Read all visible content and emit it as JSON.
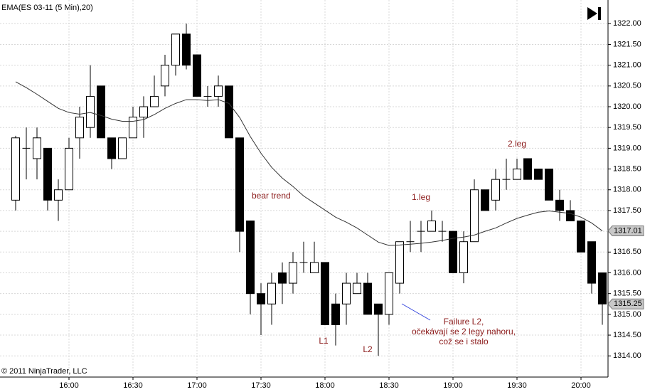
{
  "chart_data": {
    "type": "candlestick",
    "title": "EMA(ES 03-11 (5 Min),20)",
    "footer": "© 2011 NinjaTrader, LLC",
    "categories": [
      null,
      null,
      null,
      null,
      null,
      "16:00",
      null,
      null,
      null,
      null,
      null,
      "16:30",
      null,
      null,
      null,
      null,
      null,
      "17:00",
      null,
      null,
      null,
      null,
      null,
      "17:30",
      null,
      null,
      null,
      null,
      null,
      "18:00",
      null,
      null,
      null,
      null,
      null,
      "18:30",
      null,
      null,
      null,
      null,
      null,
      "19:00",
      null,
      null,
      null,
      null,
      null,
      "19:30",
      null,
      null,
      null,
      null,
      null,
      "20:00",
      null,
      null
    ],
    "open": [
      1317.75,
      1319.0,
      1318.75,
      1319.0,
      1317.75,
      1318.0,
      1319.25,
      1319.5,
      1320.5,
      1319.25,
      1318.75,
      1319.25,
      1319.75,
      1320.0,
      1320.5,
      1321.0,
      1321.75,
      1321.25,
      1320.25,
      1320.25,
      1320.5,
      1319.25,
      1317.25,
      1315.5,
      1315.25,
      1316.0,
      1315.75,
      1316.25,
      1316.0,
      1316.25,
      1315.25,
      1315.25,
      1315.5,
      1315.75,
      1315.25,
      1315.0,
      1315.75,
      1316.75,
      1317.0,
      1317.0,
      1317.0,
      1317.0,
      1316.0,
      1316.75,
      1318.0,
      1317.75,
      1318.25,
      1318.25,
      1318.75,
      1318.5,
      1318.5,
      1317.75,
      1317.5,
      1317.25,
      1316.75,
      1316.0
    ],
    "high": [
      1319.3,
      1319.5,
      1319.5,
      1319.0,
      1318.25,
      1319.25,
      1320.0,
      1321.0,
      1320.5,
      1319.25,
      1319.25,
      1320.0,
      1320.25,
      1320.75,
      1321.25,
      1321.75,
      1322.0,
      1321.25,
      1320.5,
      1320.75,
      1320.5,
      1319.25,
      1317.25,
      1315.75,
      1316.0,
      1316.25,
      1316.5,
      1316.75,
      1316.75,
      1316.25,
      1315.5,
      1316.0,
      1316.0,
      1316.0,
      1315.25,
      1316.0,
      1316.75,
      1317.25,
      1317.25,
      1317.5,
      1317.25,
      1317.0,
      1317.0,
      1318.25,
      1318.0,
      1318.5,
      1318.75,
      1318.75,
      1318.75,
      1318.5,
      1318.5,
      1318.0,
      1317.75,
      1317.25,
      1316.75,
      1316.0
    ],
    "low": [
      1317.5,
      1318.25,
      1318.25,
      1317.5,
      1317.25,
      1318.0,
      1318.75,
      1319.25,
      1319.25,
      1318.5,
      1318.75,
      1319.25,
      1319.25,
      1320.0,
      1320.25,
      1320.75,
      1320.9,
      1320.25,
      1320.0,
      1320.0,
      1319.25,
      1316.5,
      1315.0,
      1314.5,
      1314.75,
      1315.25,
      1315.5,
      1316.0,
      1316.0,
      1314.75,
      1314.25,
      1314.75,
      1315.5,
      1315.0,
      1314.0,
      1314.75,
      1315.5,
      1316.5,
      1316.5,
      1317.0,
      1316.75,
      1316.0,
      1315.75,
      1316.75,
      1317.5,
      1317.5,
      1318.0,
      1318.25,
      1318.25,
      1318.25,
      1317.75,
      1317.25,
      1317.25,
      1316.5,
      1315.5,
      1314.75
    ],
    "close": [
      1319.25,
      1319.0,
      1319.25,
      1317.75,
      1318.0,
      1319.0,
      1319.75,
      1320.25,
      1319.25,
      1318.75,
      1319.25,
      1319.75,
      1320.0,
      1320.25,
      1321.0,
      1321.75,
      1321.0,
      1320.25,
      1320.25,
      1320.5,
      1319.25,
      1317.0,
      1315.5,
      1315.25,
      1315.75,
      1315.75,
      1316.25,
      1316.25,
      1316.25,
      1314.75,
      1314.75,
      1315.75,
      1315.75,
      1315.0,
      1315.0,
      1316.0,
      1316.75,
      1316.75,
      1317.0,
      1317.25,
      1317.0,
      1316.0,
      1316.75,
      1318.0,
      1317.5,
      1318.25,
      1318.25,
      1318.5,
      1318.25,
      1318.25,
      1317.75,
      1317.5,
      1317.25,
      1316.5,
      1315.75,
      1315.25
    ],
    "ema": {
      "color": "#333333",
      "values": [
        1320.6,
        1320.46,
        1320.3,
        1320.13,
        1319.96,
        1319.86,
        1319.82,
        1319.86,
        1319.79,
        1319.7,
        1319.65,
        1319.65,
        1319.69,
        1319.81,
        1319.96,
        1320.08,
        1320.17,
        1320.17,
        1320.15,
        1320.17,
        1320.08,
        1319.74,
        1319.28,
        1318.88,
        1318.54,
        1318.28,
        1318.08,
        1317.85,
        1317.68,
        1317.51,
        1317.34,
        1317.22,
        1317.08,
        1316.91,
        1316.74,
        1316.66,
        1316.67,
        1316.69,
        1316.71,
        1316.74,
        1316.78,
        1316.83,
        1316.86,
        1316.91,
        1317.0,
        1317.08,
        1317.2,
        1317.31,
        1317.39,
        1317.46,
        1317.49,
        1317.46,
        1317.43,
        1317.34,
        1317.2,
        1317.01
      ]
    },
    "price_markers": [
      1317.01,
      1315.25
    ],
    "up_color": "#ffffff",
    "down_color": "#000000",
    "ylim": [
      1313.49,
      1322.57
    ],
    "yticks": [
      {
        "value": 1314,
        "label": "1314.00"
      },
      {
        "value": 1314.5,
        "label": "1314.50"
      },
      {
        "value": 1315,
        "label": "1315.00"
      },
      {
        "value": 1315.5,
        "label": "1315.50"
      },
      {
        "value": 1316,
        "label": "1316.00"
      },
      {
        "value": 1316.5,
        "label": "1316.50"
      },
      {
        "value": 1317,
        "label": "1317.00"
      },
      {
        "value": 1317.5,
        "label": "1317.50"
      },
      {
        "value": 1318,
        "label": "1318.00"
      },
      {
        "value": 1318.5,
        "label": "1318.50"
      },
      {
        "value": 1319,
        "label": "1319.00"
      },
      {
        "value": 1319.5,
        "label": "1319.50"
      },
      {
        "value": 1320,
        "label": "1320.00"
      },
      {
        "value": 1320.5,
        "label": "1320.50"
      },
      {
        "value": 1321,
        "label": "1321.00"
      },
      {
        "value": 1321.5,
        "label": "1321.50"
      },
      {
        "value": 1322,
        "label": "1322.00"
      }
    ],
    "grid": true,
    "annotations": [
      "bear trend",
      "1.leg",
      "2.leg",
      "L1",
      "L2",
      "Failure L2,",
      "očekávají se 2 legy nahoru,",
      "což se i stalo"
    ]
  }
}
